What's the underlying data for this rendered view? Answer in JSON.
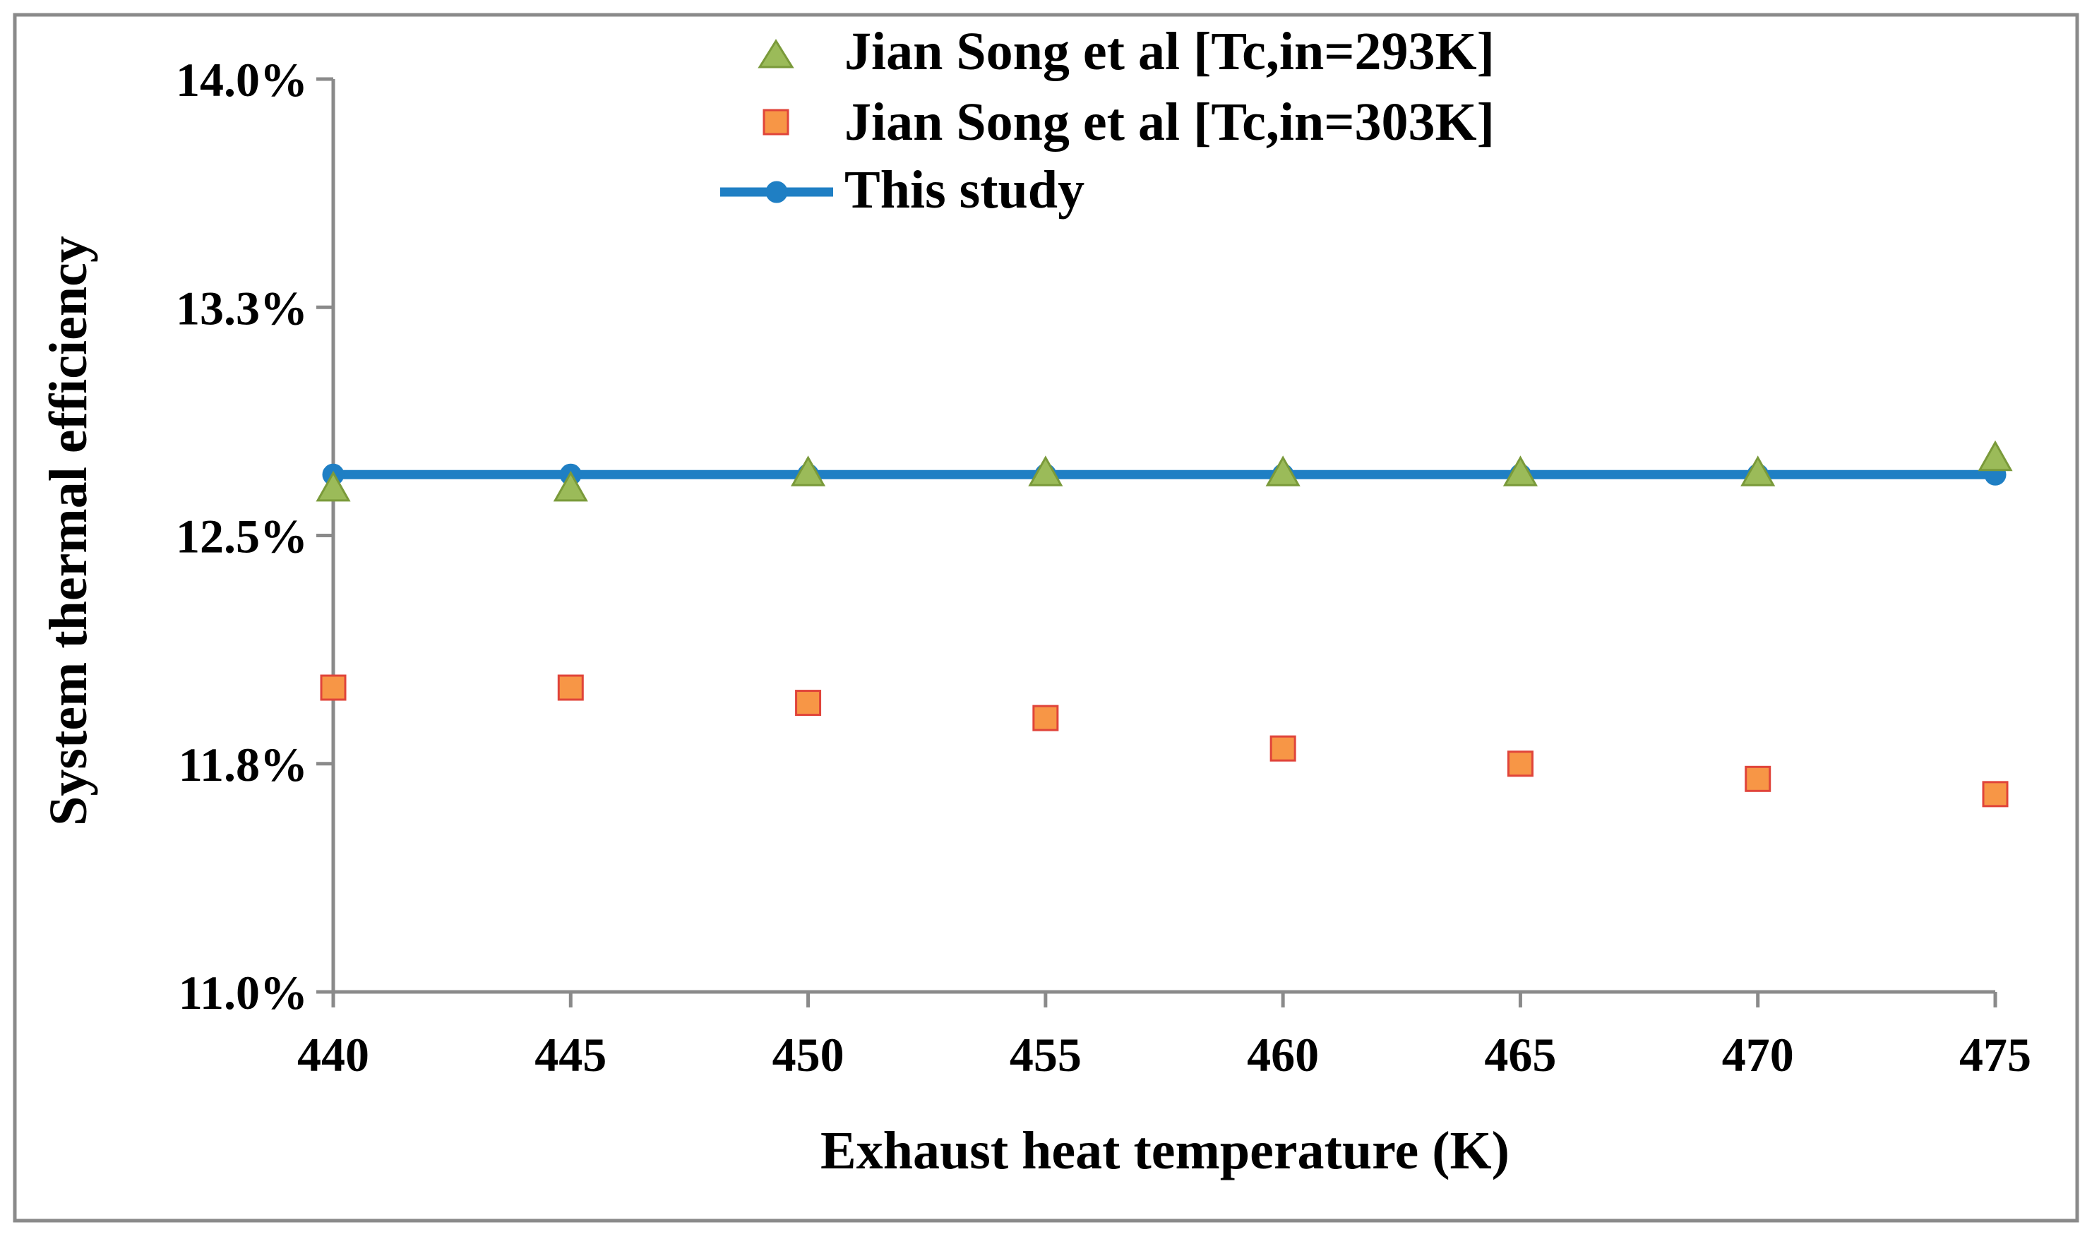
{
  "chart_data": {
    "type": "scatter",
    "title": "",
    "xlabel": "Exhaust heat temperature (K)",
    "ylabel": "System thermal efficiency",
    "x": [
      440,
      445,
      450,
      455,
      460,
      465,
      470,
      475
    ],
    "x_tick_labels": [
      "440",
      "445",
      "450",
      "455",
      "460",
      "465",
      "470",
      "475"
    ],
    "y_tick_labels": [
      "11.0%",
      "11.8%",
      "12.5%",
      "13.3%",
      "14.0%"
    ],
    "y_ticks": [
      11.0,
      11.75,
      12.5,
      13.25,
      14.0
    ],
    "ylim": [
      11.0,
      14.0
    ],
    "xlim": [
      440,
      475
    ],
    "grid": false,
    "legend_position": "top-center",
    "series": [
      {
        "name": "Jian Song et al [Tc,in=293K]",
        "marker": "triangle",
        "line": false,
        "color": "#9BBB59",
        "edge_color": "#7A9A3A",
        "values": [
          12.65,
          12.65,
          12.7,
          12.7,
          12.7,
          12.7,
          12.7,
          12.75
        ]
      },
      {
        "name": "Jian Song et al [Tc,in=303K]",
        "marker": "square",
        "line": false,
        "color": "#F79646",
        "edge_color": "#E0443A",
        "values": [
          12.0,
          12.0,
          11.95,
          11.9,
          11.8,
          11.75,
          11.7,
          11.65
        ]
      },
      {
        "name": "This study",
        "marker": "circle",
        "line": true,
        "color": "#1F7FC4",
        "edge_color": "#1F7FC4",
        "values": [
          12.7,
          12.7,
          12.7,
          12.7,
          12.7,
          12.7,
          12.7,
          12.7
        ]
      }
    ]
  }
}
